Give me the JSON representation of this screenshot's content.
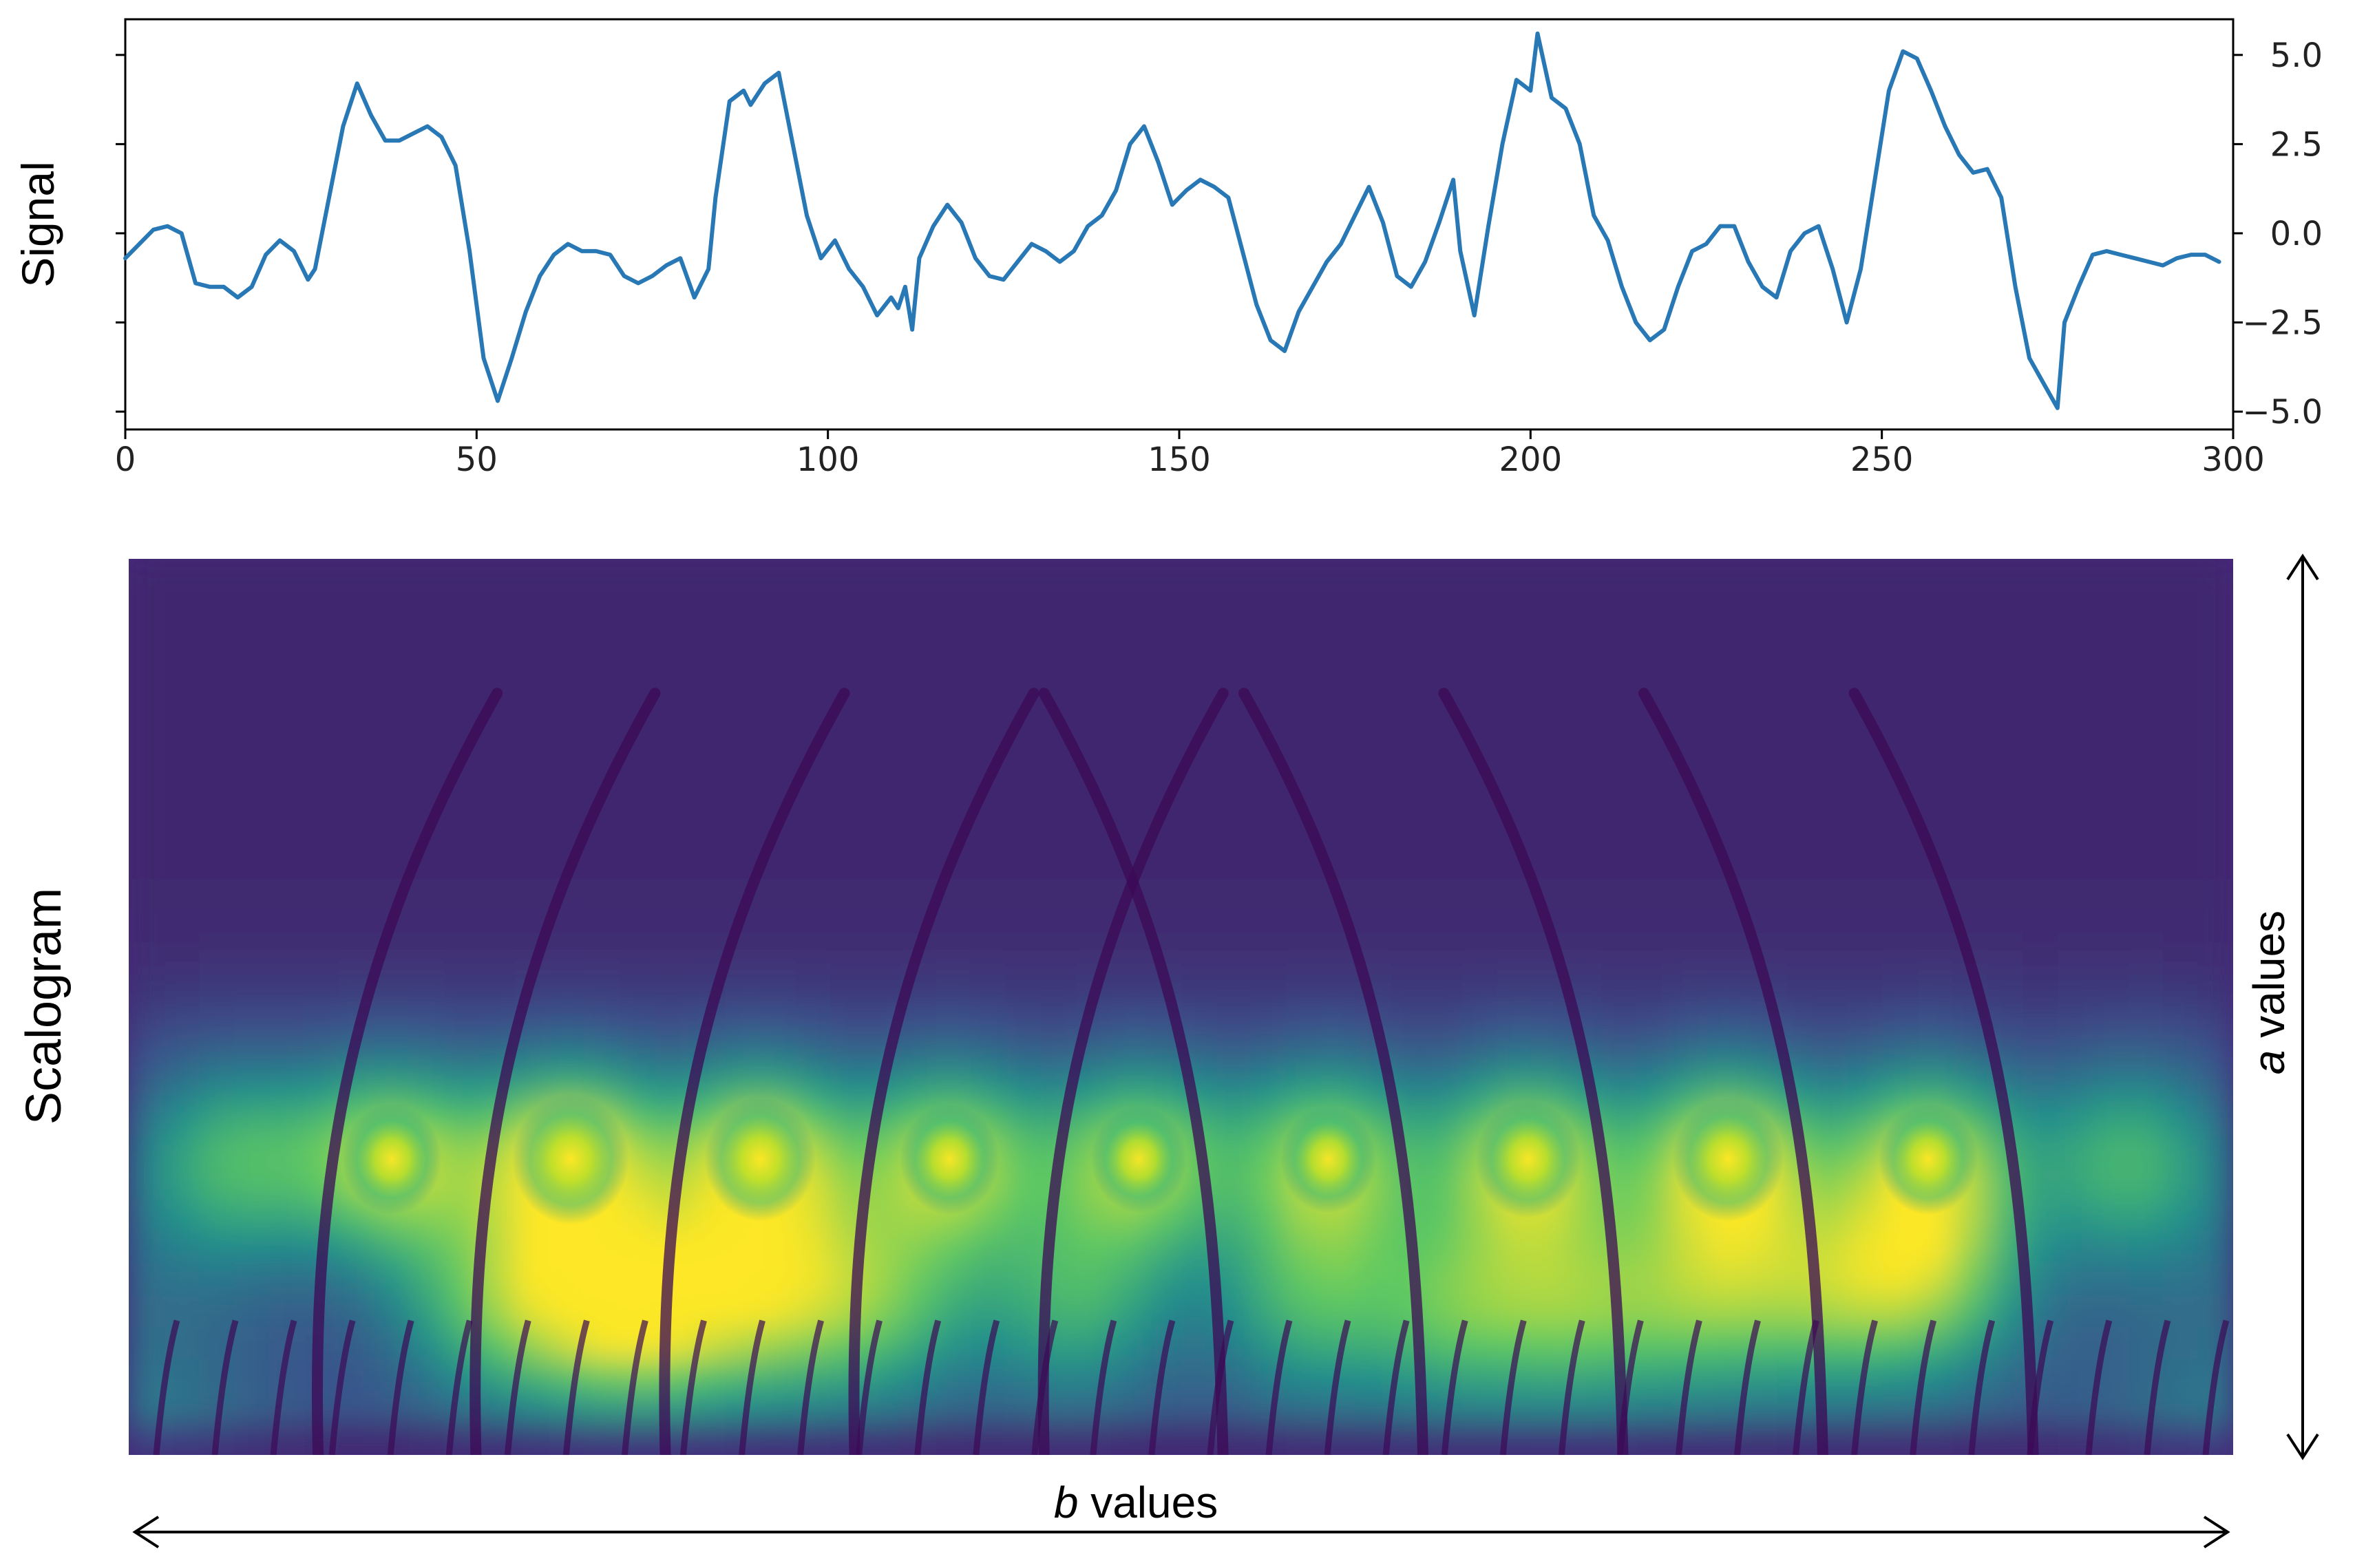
{
  "chart_data": [
    {
      "type": "line",
      "ylabel": "Signal",
      "xlim": [
        0,
        300
      ],
      "ylim": [
        -5.5,
        6.0
      ],
      "x_ticks": [
        0,
        50,
        100,
        150,
        200,
        250,
        300
      ],
      "x_tick_labels": [
        "0",
        "50",
        "100",
        "150",
        "200",
        "250",
        "300"
      ],
      "y_ticks": [
        5.0,
        2.5,
        0.0,
        -2.5,
        -5.0
      ],
      "y_tick_labels": [
        "5.0",
        "2.5",
        "0.0",
        "−2.5",
        "−5.0"
      ],
      "y_tick_side": "right",
      "line_color": "#2878b5",
      "series": [
        {
          "name": "Signal",
          "points": [
            [
              0,
              -0.7
            ],
            [
              2,
              -0.3
            ],
            [
              4,
              0.1
            ],
            [
              6,
              0.2
            ],
            [
              8,
              0.0
            ],
            [
              10,
              -1.4
            ],
            [
              12,
              -1.5
            ],
            [
              14,
              -1.5
            ],
            [
              16,
              -1.8
            ],
            [
              18,
              -1.5
            ],
            [
              20,
              -0.6
            ],
            [
              22,
              -0.2
            ],
            [
              24,
              -0.5
            ],
            [
              26,
              -1.3
            ],
            [
              27,
              -1.0
            ],
            [
              29,
              1.0
            ],
            [
              31,
              3.0
            ],
            [
              33,
              4.2
            ],
            [
              35,
              3.3
            ],
            [
              37,
              2.6
            ],
            [
              39,
              2.6
            ],
            [
              41,
              2.8
            ],
            [
              43,
              3.0
            ],
            [
              45,
              2.7
            ],
            [
              47,
              1.9
            ],
            [
              49,
              -0.5
            ],
            [
              51,
              -3.5
            ],
            [
              53,
              -4.7
            ],
            [
              55,
              -3.5
            ],
            [
              57,
              -2.2
            ],
            [
              59,
              -1.2
            ],
            [
              61,
              -0.6
            ],
            [
              63,
              -0.3
            ],
            [
              65,
              -0.5
            ],
            [
              67,
              -0.5
            ],
            [
              69,
              -0.6
            ],
            [
              71,
              -1.2
            ],
            [
              73,
              -1.4
            ],
            [
              75,
              -1.2
            ],
            [
              77,
              -0.9
            ],
            [
              79,
              -0.7
            ],
            [
              81,
              -1.8
            ],
            [
              83,
              -1.0
            ],
            [
              84,
              1.0
            ],
            [
              86,
              3.7
            ],
            [
              88,
              4.0
            ],
            [
              89,
              3.6
            ],
            [
              91,
              4.2
            ],
            [
              93,
              4.5
            ],
            [
              95,
              2.5
            ],
            [
              97,
              0.5
            ],
            [
              99,
              -0.7
            ],
            [
              101,
              -0.2
            ],
            [
              103,
              -1.0
            ],
            [
              105,
              -1.5
            ],
            [
              107,
              -2.3
            ],
            [
              109,
              -1.8
            ],
            [
              110,
              -2.1
            ],
            [
              111,
              -1.5
            ],
            [
              112,
              -2.7
            ],
            [
              113,
              -0.7
            ],
            [
              115,
              0.2
            ],
            [
              117,
              0.8
            ],
            [
              119,
              0.3
            ],
            [
              121,
              -0.7
            ],
            [
              123,
              -1.2
            ],
            [
              125,
              -1.3
            ],
            [
              127,
              -0.8
            ],
            [
              129,
              -0.3
            ],
            [
              131,
              -0.5
            ],
            [
              133,
              -0.8
            ],
            [
              135,
              -0.5
            ],
            [
              137,
              0.2
            ],
            [
              139,
              0.5
            ],
            [
              141,
              1.2
            ],
            [
              143,
              2.5
            ],
            [
              145,
              3.0
            ],
            [
              147,
              2.0
            ],
            [
              149,
              0.8
            ],
            [
              151,
              1.2
            ],
            [
              153,
              1.5
            ],
            [
              155,
              1.3
            ],
            [
              157,
              1.0
            ],
            [
              159,
              -0.5
            ],
            [
              161,
              -2.0
            ],
            [
              163,
              -3.0
            ],
            [
              165,
              -3.3
            ],
            [
              167,
              -2.2
            ],
            [
              169,
              -1.5
            ],
            [
              171,
              -0.8
            ],
            [
              173,
              -0.3
            ],
            [
              175,
              0.5
            ],
            [
              177,
              1.3
            ],
            [
              179,
              0.3
            ],
            [
              181,
              -1.2
            ],
            [
              183,
              -1.5
            ],
            [
              185,
              -0.8
            ],
            [
              187,
              0.3
            ],
            [
              189,
              1.5
            ],
            [
              190,
              -0.5
            ],
            [
              192,
              -2.3
            ],
            [
              194,
              0.2
            ],
            [
              196,
              2.5
            ],
            [
              198,
              4.3
            ],
            [
              200,
              4.0
            ],
            [
              201,
              5.6
            ],
            [
              203,
              3.8
            ],
            [
              205,
              3.5
            ],
            [
              207,
              2.5
            ],
            [
              209,
              0.5
            ],
            [
              211,
              -0.2
            ],
            [
              213,
              -1.5
            ],
            [
              215,
              -2.5
            ],
            [
              217,
              -3.0
            ],
            [
              219,
              -2.7
            ],
            [
              221,
              -1.5
            ],
            [
              223,
              -0.5
            ],
            [
              225,
              -0.3
            ],
            [
              227,
              0.2
            ],
            [
              229,
              0.2
            ],
            [
              231,
              -0.8
            ],
            [
              233,
              -1.5
            ],
            [
              235,
              -1.8
            ],
            [
              237,
              -0.5
            ],
            [
              239,
              0.0
            ],
            [
              241,
              0.2
            ],
            [
              243,
              -1.0
            ],
            [
              245,
              -2.5
            ],
            [
              247,
              -1.0
            ],
            [
              249,
              1.5
            ],
            [
              251,
              4.0
            ],
            [
              253,
              5.1
            ],
            [
              255,
              4.9
            ],
            [
              257,
              4.0
            ],
            [
              259,
              3.0
            ],
            [
              261,
              2.2
            ],
            [
              263,
              1.7
            ],
            [
              265,
              1.8
            ],
            [
              267,
              1.0
            ],
            [
              269,
              -1.5
            ],
            [
              271,
              -3.5
            ],
            [
              273,
              -4.2
            ],
            [
              275,
              -4.9
            ],
            [
              276,
              -2.5
            ],
            [
              278,
              -1.5
            ],
            [
              280,
              -0.6
            ],
            [
              282,
              -0.5
            ],
            [
              284,
              -0.6
            ],
            [
              286,
              -0.7
            ],
            [
              288,
              -0.8
            ],
            [
              290,
              -0.9
            ],
            [
              292,
              -0.7
            ],
            [
              294,
              -0.6
            ],
            [
              296,
              -0.6
            ],
            [
              298,
              -0.8
            ]
          ]
        }
      ]
    },
    {
      "type": "heatmap",
      "ylabel": "Scalogram",
      "xlabel_italic": "b",
      "xlabel_rest": " values",
      "right_label_italic": "a",
      "right_label_rest": " values",
      "colormap": [
        "#440154",
        "#3b528b",
        "#21918c",
        "#5ec962",
        "#fde725"
      ],
      "grid_cols": 60,
      "grid_rows": 28,
      "blobs": [
        {
          "b": 0.05,
          "a": 0.67,
          "val": 0.55
        },
        {
          "b": 0.125,
          "a": 0.67,
          "val": 0.85
        },
        {
          "b": 0.21,
          "a": 0.67,
          "val": 1.0
        },
        {
          "b": 0.3,
          "a": 0.67,
          "val": 0.95
        },
        {
          "b": 0.39,
          "a": 0.67,
          "val": 0.85
        },
        {
          "b": 0.48,
          "a": 0.67,
          "val": 0.82
        },
        {
          "b": 0.57,
          "a": 0.67,
          "val": 0.82
        },
        {
          "b": 0.665,
          "a": 0.67,
          "val": 0.9
        },
        {
          "b": 0.76,
          "a": 0.67,
          "val": 0.95
        },
        {
          "b": 0.855,
          "a": 0.67,
          "val": 0.85
        },
        {
          "b": 0.95,
          "a": 0.67,
          "val": 0.55
        },
        {
          "b": 0.17,
          "a": 0.83,
          "val": 0.5
        },
        {
          "b": 0.22,
          "a": 0.84,
          "val": 0.6
        },
        {
          "b": 0.26,
          "a": 0.84,
          "val": 0.6
        },
        {
          "b": 0.31,
          "a": 0.83,
          "val": 0.55
        },
        {
          "b": 0.36,
          "a": 0.83,
          "val": 0.5
        },
        {
          "b": 0.45,
          "a": 0.83,
          "val": 0.5
        },
        {
          "b": 0.56,
          "a": 0.83,
          "val": 0.5
        },
        {
          "b": 0.63,
          "a": 0.84,
          "val": 0.55
        },
        {
          "b": 0.69,
          "a": 0.84,
          "val": 0.55
        },
        {
          "b": 0.75,
          "a": 0.83,
          "val": 0.55
        },
        {
          "b": 0.81,
          "a": 0.82,
          "val": 0.55
        },
        {
          "b": 0.86,
          "a": 0.81,
          "val": 0.55
        }
      ]
    }
  ],
  "colors": {
    "axis": "#000000",
    "tick_text": "#222222"
  }
}
